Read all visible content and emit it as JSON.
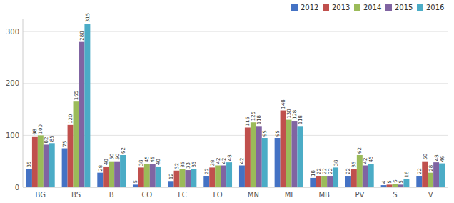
{
  "chart_data": {
    "type": "bar",
    "categories": [
      "BG",
      "BS",
      "B",
      "CO",
      "LC",
      "LO",
      "MN",
      "MI",
      "MB",
      "PV",
      "S",
      "V"
    ],
    "series": [
      {
        "name": "2012",
        "color": "#4472C4",
        "values": [
          35,
          75,
          28,
          5,
          12,
          22,
          42,
          95,
          18,
          22,
          4,
          22
        ]
      },
      {
        "name": "2013",
        "color": "#C0504D",
        "values": [
          98,
          120,
          40,
          38,
          32,
          38,
          115,
          148,
          22,
          35,
          5,
          50
        ]
      },
      {
        "name": "2014",
        "color": "#9BBB59",
        "values": [
          100,
          165,
          50,
          45,
          35,
          42,
          125,
          130,
          22,
          62,
          6,
          28
        ]
      },
      {
        "name": "2015",
        "color": "#8064A2",
        "values": [
          82,
          280,
          50,
          45,
          33,
          42,
          118,
          128,
          22,
          42,
          5,
          48
        ]
      },
      {
        "name": "2016",
        "color": "#4BACC6",
        "values": [
          85,
          315,
          62,
          40,
          35,
          48,
          95,
          118,
          38,
          45,
          16,
          46
        ]
      }
    ],
    "ylim": [
      0,
      325
    ],
    "yticks": [
      0,
      100,
      200,
      300
    ],
    "grid": true,
    "legend": "upper right",
    "data_labels": true
  }
}
